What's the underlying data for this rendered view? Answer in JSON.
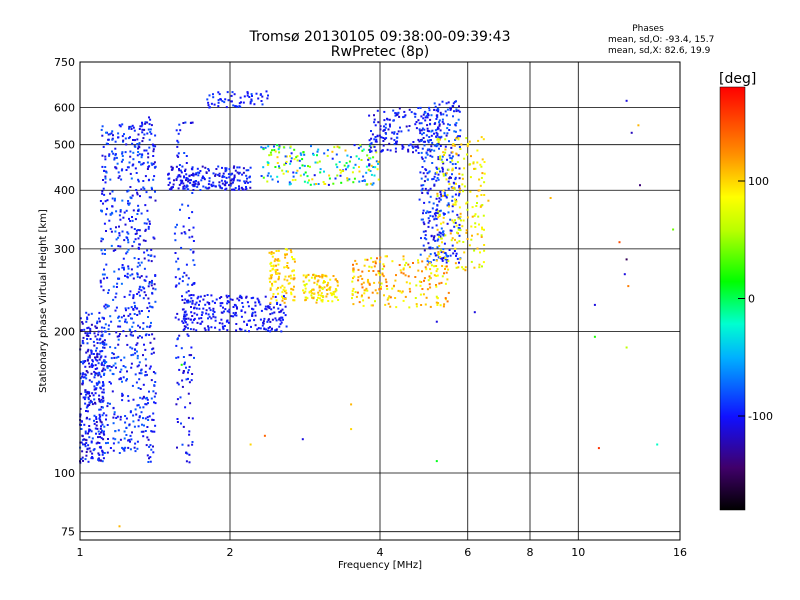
{
  "chart_data": {
    "type": "scatter",
    "title": "Tromsø 20130105 09:38:00-09:39:43",
    "subtitle": "RwPretec (8p)",
    "xlabel": "Frequency [MHz]",
    "ylabel": "Stationary phase Virtual Height [km]",
    "x_scale": "log",
    "y_scale": "log",
    "xlim": [
      1,
      16
    ],
    "ylim": [
      72,
      750
    ],
    "x_ticks": [
      1,
      2,
      4,
      6,
      8,
      10,
      16
    ],
    "x_tick_labels": [
      "1",
      "2",
      "4",
      "6",
      "8",
      "10",
      "16"
    ],
    "y_ticks": [
      75,
      100,
      200,
      300,
      400,
      500,
      600,
      750
    ],
    "y_tick_labels": [
      "75",
      "100",
      "200",
      "300",
      "400",
      "500",
      "600",
      "750"
    ],
    "grid": true,
    "stats": {
      "heading": "Phases",
      "line_o": "mean, sd,O: -93.4, 15.7",
      "line_x": "mean, sd,X:  82.6, 19.9"
    },
    "colorbar": {
      "label": "[deg]",
      "range": [
        -180,
        180
      ],
      "ticks": [
        100,
        0,
        -100
      ],
      "tick_labels": [
        "100",
        "0",
        "-100"
      ]
    },
    "clusters": [
      {
        "f": [
          1.0,
          1.12
        ],
        "h": [
          105,
          220
        ],
        "phase": [
          -125,
          -80
        ],
        "n": 320
      },
      {
        "f": [
          1.1,
          1.32
        ],
        "h": [
          110,
          560
        ],
        "phase": [
          -115,
          -70
        ],
        "n": 480
      },
      {
        "f": [
          1.3,
          1.42
        ],
        "h": [
          105,
          580
        ],
        "phase": [
          -120,
          -75
        ],
        "n": 260
      },
      {
        "f": [
          1.55,
          1.7
        ],
        "h": [
          105,
          560
        ],
        "phase": [
          -120,
          -80
        ],
        "n": 150
      },
      {
        "f": [
          1.5,
          2.2
        ],
        "h": [
          400,
          450
        ],
        "phase": [
          -120,
          -85
        ],
        "n": 200
      },
      {
        "f": [
          1.8,
          2.4
        ],
        "h": [
          600,
          650
        ],
        "phase": [
          -110,
          -80
        ],
        "n": 60
      },
      {
        "f": [
          1.6,
          2.6
        ],
        "h": [
          200,
          240
        ],
        "phase": [
          -115,
          -90
        ],
        "n": 260
      },
      {
        "f": [
          2.4,
          2.7
        ],
        "h": [
          230,
          300
        ],
        "phase": [
          80,
          120
        ],
        "n": 110
      },
      {
        "f": [
          2.8,
          3.3
        ],
        "h": [
          230,
          265
        ],
        "phase": [
          70,
          120
        ],
        "n": 110
      },
      {
        "f": [
          2.3,
          4.0
        ],
        "h": [
          410,
          500
        ],
        "phase": [
          -110,
          110
        ],
        "n": 200
      },
      {
        "f": [
          3.8,
          5.3
        ],
        "h": [
          480,
          600
        ],
        "phase": [
          -120,
          -80
        ],
        "n": 150
      },
      {
        "f": [
          4.8,
          5.8
        ],
        "h": [
          280,
          620
        ],
        "phase": [
          -120,
          -70
        ],
        "n": 360
      },
      {
        "f": [
          5.2,
          6.5
        ],
        "h": [
          270,
          520
        ],
        "phase": [
          60,
          120
        ],
        "n": 200
      },
      {
        "f": [
          3.5,
          5.5
        ],
        "h": [
          225,
          290
        ],
        "phase": [
          70,
          140
        ],
        "n": 200
      }
    ],
    "scattered": [
      {
        "f": 1.2,
        "h": 77,
        "phase": 110
      },
      {
        "f": 1.6,
        "h": 170,
        "phase": 20
      },
      {
        "f": 2.2,
        "h": 115,
        "phase": 100
      },
      {
        "f": 2.35,
        "h": 120,
        "phase": 140
      },
      {
        "f": 2.8,
        "h": 118,
        "phase": -110
      },
      {
        "f": 3.5,
        "h": 124,
        "phase": 100
      },
      {
        "f": 3.5,
        "h": 140,
        "phase": 110
      },
      {
        "f": 5.2,
        "h": 106,
        "phase": 10
      },
      {
        "f": 5.2,
        "h": 210,
        "phase": -110
      },
      {
        "f": 6.2,
        "h": 220,
        "phase": -110
      },
      {
        "f": 6.6,
        "h": 380,
        "phase": 110
      },
      {
        "f": 8.8,
        "h": 385,
        "phase": 110
      },
      {
        "f": 10.8,
        "h": 195,
        "phase": 20
      },
      {
        "f": 10.8,
        "h": 228,
        "phase": -110
      },
      {
        "f": 11.0,
        "h": 113,
        "phase": 160
      },
      {
        "f": 12.1,
        "h": 310,
        "phase": 150
      },
      {
        "f": 12.4,
        "h": 265,
        "phase": -110
      },
      {
        "f": 12.5,
        "h": 285,
        "phase": -150
      },
      {
        "f": 12.6,
        "h": 250,
        "phase": 130
      },
      {
        "f": 12.5,
        "h": 185,
        "phase": 60
      },
      {
        "f": 12.5,
        "h": 620,
        "phase": -110
      },
      {
        "f": 12.8,
        "h": 530,
        "phase": -120
      },
      {
        "f": 13.2,
        "h": 550,
        "phase": 110
      },
      {
        "f": 13.3,
        "h": 410,
        "phase": -140
      },
      {
        "f": 14.4,
        "h": 115,
        "phase": -20
      },
      {
        "f": 15.5,
        "h": 330,
        "phase": 40
      }
    ]
  }
}
